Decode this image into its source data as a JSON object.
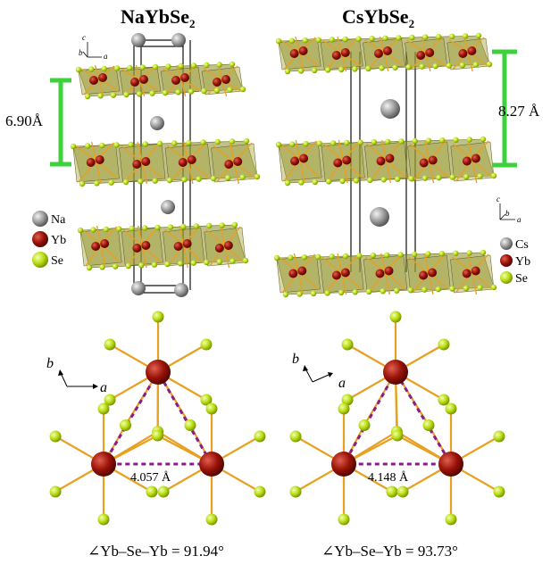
{
  "panels": [
    {
      "title_main": "NaYbSe",
      "title_sub": "2",
      "interlayer_distance": "6.90Å",
      "top_axes": {
        "c": "c",
        "b": "b",
        "a": "a"
      },
      "legend": [
        "Na",
        "Yb",
        "Se"
      ],
      "lattice_axes": {
        "b": "b",
        "a": "a"
      },
      "yb_yb_distance": "4.057 Å",
      "bond_angle": "∠Yb–Se–Yb = 91.94°"
    },
    {
      "title_main": "CsYbSe",
      "title_sub": "2",
      "interlayer_distance": "8.27 Å",
      "top_axes": {
        "c": "c",
        "b": "b",
        "a": "a"
      },
      "legend": [
        "Cs",
        "Yb",
        "Se"
      ],
      "lattice_axes": {
        "b": "b",
        "a": "a"
      },
      "yb_yb_distance": "4.148 Å",
      "bond_angle": "∠Yb–Se–Yb = 93.73°"
    }
  ],
  "colors": {
    "se": "#b8dc10",
    "yb": "#9a1208",
    "alkali": "#9a9a9a",
    "bond": "#e8a020",
    "layer_fill": "#8c8c2a",
    "spacing_marker": "#3dd13d",
    "triangle_dash": "#8a1c8a"
  }
}
